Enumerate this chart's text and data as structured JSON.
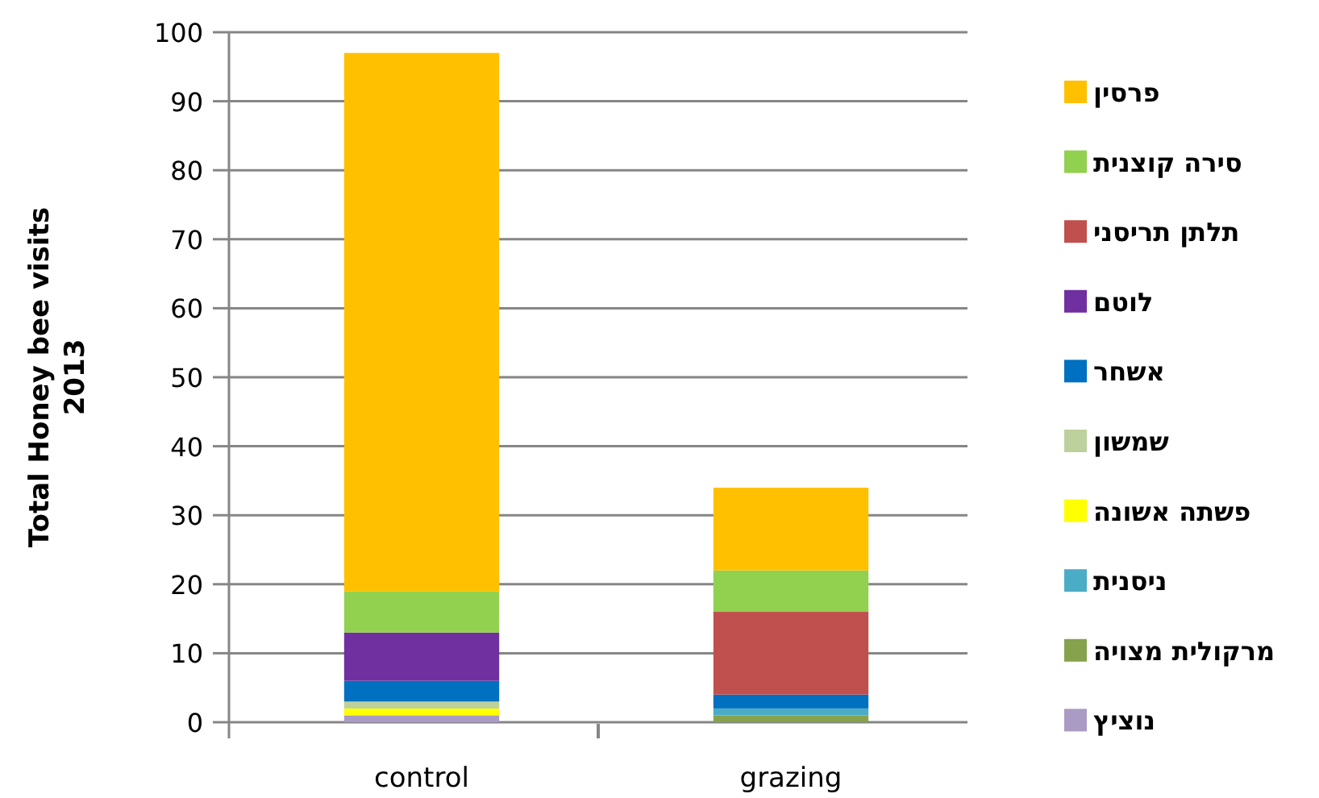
{
  "chart_data": {
    "type": "bar",
    "stacked": true,
    "ylabel": "Total Honey bee visits\n2013",
    "categories": [
      "control",
      "grazing"
    ],
    "ylim": [
      0,
      100
    ],
    "yticks": [
      0,
      10,
      20,
      30,
      40,
      50,
      60,
      70,
      80,
      90,
      100
    ],
    "grid": "y",
    "legend": "right",
    "series": [
      {
        "name": "נוציץ",
        "color": "#a99bc4",
        "values": [
          1,
          0
        ]
      },
      {
        "name": "מרקולית מצויה",
        "color": "#86a24c",
        "values": [
          0,
          1
        ]
      },
      {
        "name": "ניסנית",
        "color": "#4bacc6",
        "values": [
          0,
          1
        ]
      },
      {
        "name": "פשתה אשונה",
        "color": "#ffff00",
        "values": [
          1,
          0
        ]
      },
      {
        "name": "שמשון",
        "color": "#bcd19b",
        "values": [
          1,
          0
        ]
      },
      {
        "name": "אשחר",
        "color": "#0070c0",
        "values": [
          3,
          2
        ]
      },
      {
        "name": "לוטם",
        "color": "#7030a0",
        "values": [
          7,
          0
        ]
      },
      {
        "name": "תלתן תריסני",
        "color": "#c0504d",
        "values": [
          0,
          12
        ]
      },
      {
        "name": "סירה קוצנית",
        "color": "#92d050",
        "values": [
          6,
          6
        ]
      },
      {
        "name": "פרסין",
        "color": "#ffc000",
        "values": [
          78,
          12
        ]
      }
    ]
  }
}
